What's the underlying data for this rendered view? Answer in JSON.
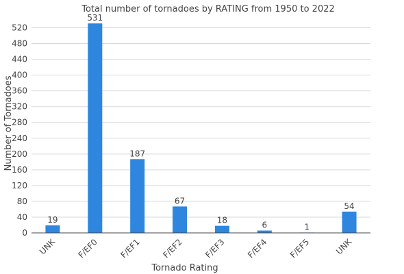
{
  "chart_data": {
    "type": "bar",
    "title": "Total number of tornadoes by RATING from 1950 to 2022",
    "xlabel": "Tornado Rating",
    "ylabel": "Number of Tornadoes",
    "categories": [
      "UNK",
      "F/EF0",
      "F/EF1",
      "F/EF2",
      "F/EF3",
      "F/EF4",
      "F/EF5",
      "UNK"
    ],
    "values": [
      19,
      531,
      187,
      67,
      18,
      6,
      1,
      54
    ],
    "ylim": [
      0,
      540
    ],
    "yticks": [
      0,
      40,
      80,
      120,
      160,
      200,
      240,
      280,
      320,
      360,
      400,
      440,
      480,
      520
    ],
    "grid": true,
    "legend": "none",
    "bar_color": "#2e86de"
  }
}
